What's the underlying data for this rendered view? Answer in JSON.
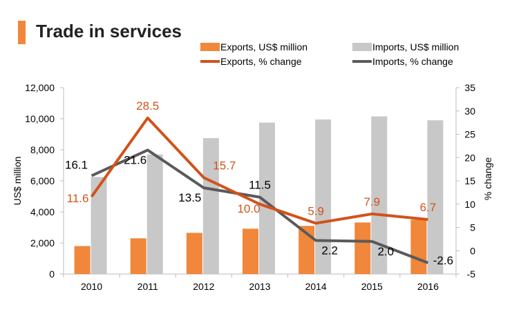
{
  "title": "Trade in services",
  "colors": {
    "exports": "#f0873a",
    "imports": "#c8c8c8",
    "exports_line": "#d2521a",
    "imports_line": "#5a5a5a",
    "accent": "#f0873a",
    "axis": "#bdbdbd"
  },
  "chart_data": {
    "type": "bar",
    "categories": [
      "2010",
      "2011",
      "2012",
      "2013",
      "2014",
      "2015",
      "2016"
    ],
    "series": [
      {
        "name": "Exports, US$ million",
        "type": "bar",
        "axis": "left",
        "values": [
          1800,
          2300,
          2650,
          2920,
          3100,
          3320,
          3500
        ]
      },
      {
        "name": "Imports, US$ million",
        "type": "bar",
        "axis": "left",
        "values": [
          6250,
          7700,
          8750,
          9750,
          9950,
          10150,
          9900
        ]
      },
      {
        "name": "Exports, % change",
        "type": "line",
        "axis": "right",
        "values": [
          11.6,
          28.5,
          15.7,
          10.0,
          5.9,
          7.9,
          6.7
        ],
        "labels": [
          "11.6",
          "28.5",
          "15.7",
          "10.0",
          "5.9",
          "7.9",
          "6.7"
        ]
      },
      {
        "name": "Imports, % change",
        "type": "line",
        "axis": "right",
        "values": [
          16.1,
          21.6,
          13.5,
          11.5,
          2.2,
          2.0,
          -2.6
        ],
        "labels": [
          "16.1",
          "21.6",
          "13.5",
          "11.5",
          "2.2",
          "2.0",
          "-2.6"
        ]
      }
    ],
    "ylabel": "US$ million",
    "y2label": "% change",
    "ylim": [
      0,
      12000
    ],
    "y2lim": [
      -5,
      35
    ],
    "yticks": [
      "0",
      "2,000",
      "4,000",
      "6,000",
      "8,000",
      "10,000",
      "12,000"
    ],
    "y2ticks": [
      "-5",
      "0",
      "5",
      "10",
      "15",
      "20",
      "25",
      "30",
      "35"
    ],
    "grid": false,
    "legend_position": "top"
  }
}
